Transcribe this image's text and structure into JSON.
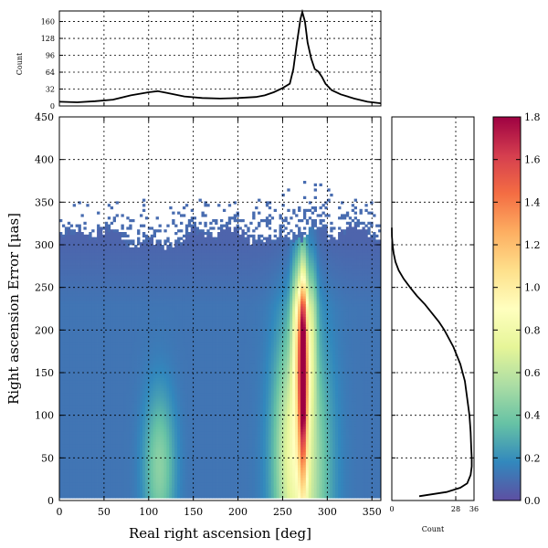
{
  "chart_data": [
    {
      "id": "top-hist",
      "type": "line",
      "ylabel": "Count",
      "xlim": [
        0,
        360
      ],
      "ylim": [
        0,
        180
      ],
      "yticks": [
        "0",
        "32",
        "64",
        "96",
        "128",
        "160"
      ],
      "x": [
        0,
        20,
        40,
        60,
        80,
        100,
        110,
        120,
        140,
        160,
        180,
        200,
        220,
        230,
        240,
        250,
        258,
        262,
        266,
        270,
        272,
        275,
        278,
        282,
        286,
        290,
        294,
        298,
        305,
        315,
        330,
        345,
        360
      ],
      "y": [
        8,
        7,
        9,
        12,
        20,
        26,
        28,
        25,
        18,
        15,
        14,
        15,
        17,
        20,
        26,
        34,
        42,
        70,
        120,
        165,
        178,
        160,
        120,
        90,
        70,
        65,
        55,
        42,
        30,
        22,
        14,
        8,
        5
      ]
    },
    {
      "id": "main-heatmap",
      "type": "heatmap",
      "xlabel": "Real right ascension [deg]",
      "ylabel": "Right ascension Error [μas]",
      "xlim": [
        0,
        360
      ],
      "ylim": [
        0,
        450
      ],
      "xticks": [
        "0",
        "50",
        "100",
        "150",
        "200",
        "250",
        "300",
        "350"
      ],
      "yticks": [
        "0",
        "50",
        "100",
        "150",
        "200",
        "250",
        "300",
        "350",
        "400",
        "450"
      ],
      "density_max": 1.8
    },
    {
      "id": "right-hist",
      "type": "line",
      "xlabel": "Count",
      "xlim": [
        0,
        36
      ],
      "ylim": [
        0,
        450
      ],
      "xticks": [
        "0",
        "28",
        "36"
      ],
      "error": [
        5,
        10,
        15,
        20,
        30,
        40,
        50,
        60,
        80,
        100,
        120,
        140,
        160,
        180,
        200,
        210,
        220,
        230,
        240,
        250,
        260,
        270,
        280,
        290,
        300,
        310,
        320
      ],
      "count": [
        12,
        24,
        30,
        33,
        34.5,
        35,
        35,
        34.8,
        34.5,
        34,
        33,
        32,
        30,
        27,
        23,
        20.5,
        17.5,
        14.5,
        11,
        8,
        5.2,
        3,
        1.6,
        0.8,
        0.3,
        0.05,
        0
      ]
    },
    {
      "id": "colorbar",
      "type": "colorbar",
      "range": [
        0,
        1.8
      ],
      "ticks": [
        "0.0",
        "0.2",
        "0.4",
        "0.6",
        "0.8",
        "1.0",
        "1.2",
        "1.4",
        "1.6",
        "1.8"
      ],
      "colors": [
        "#5e4fa2",
        "#3288bd",
        "#66c2a5",
        "#abdda4",
        "#e6f598",
        "#ffffbf",
        "#fee08b",
        "#fdae61",
        "#f46d43",
        "#d53e4f",
        "#9e0142"
      ]
    }
  ]
}
